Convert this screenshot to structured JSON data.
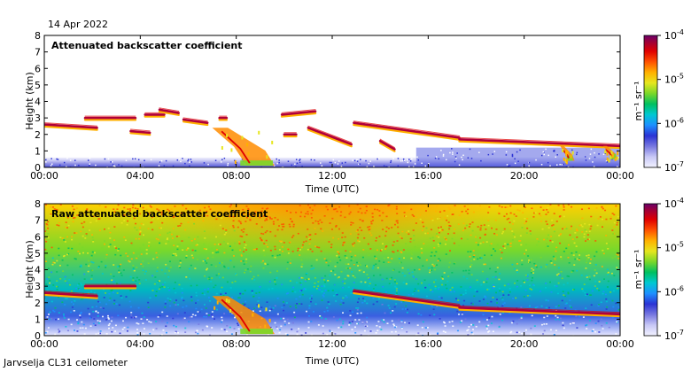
{
  "figure": {
    "date": "14 Apr 2022",
    "footer": "Jarvselja CL31 ceilometer"
  },
  "colorbar": {
    "min_label_base": "10",
    "min_label_exp": "-7",
    "labels": [
      {
        "base": "10",
        "exp": "-4"
      },
      {
        "base": "10",
        "exp": "-5"
      },
      {
        "base": "10",
        "exp": "-6"
      },
      {
        "base": "10",
        "exp": "-7"
      }
    ],
    "unit_text": "m⁻¹ sr⁻¹",
    "colors": [
      "#f2f2ff",
      "#c8c8f6",
      "#7878e0",
      "#2b33d4",
      "#1e90ff",
      "#00c8d2",
      "#00c060",
      "#7ad82a",
      "#e6e61e",
      "#ffb000",
      "#ff5000",
      "#e00000",
      "#a00038",
      "#6a006a"
    ]
  },
  "chart_data": [
    {
      "type": "heatmap",
      "title": "Attenuated backscatter coefficient",
      "xlabel": "Time (UTC)",
      "ylabel": "Height (km)",
      "xlim": [
        0,
        24
      ],
      "ylim": [
        0,
        8
      ],
      "xticks": [
        "00:00",
        "04:00",
        "08:00",
        "12:00",
        "16:00",
        "20:00",
        "00:00"
      ],
      "yticks": [
        "0",
        "1",
        "2",
        "3",
        "4",
        "5",
        "6",
        "7",
        "8"
      ],
      "color_scale": "log10, 1e-7 to 1e-4 m-1 sr-1",
      "features": [
        {
          "kind": "cloud_base",
          "t_start": 0.0,
          "t_end": 2.2,
          "h_start": 2.6,
          "h_end": 2.4
        },
        {
          "kind": "cloud_base",
          "t_start": 1.7,
          "t_end": 3.8,
          "h_start": 3.0,
          "h_end": 3.0
        },
        {
          "kind": "cloud_base",
          "t_start": 3.6,
          "t_end": 4.4,
          "h_start": 2.2,
          "h_end": 2.1
        },
        {
          "kind": "cloud_base",
          "t_start": 4.2,
          "t_end": 5.0,
          "h_start": 3.2,
          "h_end": 3.2
        },
        {
          "kind": "cloud_base",
          "t_start": 4.8,
          "t_end": 5.6,
          "h_start": 3.5,
          "h_end": 3.3
        },
        {
          "kind": "cloud_base",
          "t_start": 5.8,
          "t_end": 6.8,
          "h_start": 2.9,
          "h_end": 2.7
        },
        {
          "kind": "cloud_base",
          "t_start": 7.3,
          "t_end": 7.6,
          "h_start": 3.0,
          "h_end": 3.0
        },
        {
          "kind": "precip",
          "t_start": 7.0,
          "t_end": 9.6,
          "h_start": 2.4,
          "h_end": 0.1
        },
        {
          "kind": "cloud_base",
          "t_start": 10.0,
          "t_end": 10.5,
          "h_start": 2.0,
          "h_end": 2.0
        },
        {
          "kind": "cloud_base",
          "t_start": 9.9,
          "t_end": 11.3,
          "h_start": 3.2,
          "h_end": 3.4
        },
        {
          "kind": "cloud_base",
          "t_start": 11.0,
          "t_end": 12.8,
          "h_start": 2.4,
          "h_end": 1.4
        },
        {
          "kind": "cloud_base",
          "t_start": 12.9,
          "t_end": 17.3,
          "h_start": 2.7,
          "h_end": 1.8
        },
        {
          "kind": "cloud_base",
          "t_start": 17.3,
          "t_end": 24.0,
          "h_start": 1.7,
          "h_end": 1.3
        },
        {
          "kind": "cloud_base",
          "t_start": 14.0,
          "t_end": 14.6,
          "h_start": 1.6,
          "h_end": 1.1
        },
        {
          "kind": "precip",
          "t_start": 21.5,
          "t_end": 22.1,
          "h_start": 1.3,
          "h_end": 0.4
        },
        {
          "kind": "precip",
          "t_start": 23.3,
          "t_end": 23.9,
          "h_start": 1.3,
          "h_end": 0.5
        }
      ],
      "boundary_layer_km": 0.6
    },
    {
      "type": "heatmap",
      "title": "Raw attenuated backscatter coefficient",
      "xlabel": "Time (UTC)",
      "ylabel": "Height (km)",
      "xlim": [
        0,
        24
      ],
      "ylim": [
        0,
        8
      ],
      "xticks": [
        "00:00",
        "04:00",
        "08:00",
        "12:00",
        "16:00",
        "20:00",
        "00:00"
      ],
      "yticks": [
        "0",
        "1",
        "2",
        "3",
        "4",
        "5",
        "6",
        "7",
        "8"
      ],
      "color_scale": "log10, 1e-7 to 1e-4 m-1 sr-1",
      "noise": "high noise above 3 km, strongest 08:00-15:00 near 8 km",
      "features": [
        {
          "kind": "cloud_base",
          "t_start": 0.0,
          "t_end": 2.2,
          "h_start": 2.6,
          "h_end": 2.4
        },
        {
          "kind": "cloud_base",
          "t_start": 1.7,
          "t_end": 3.8,
          "h_start": 3.0,
          "h_end": 3.0
        },
        {
          "kind": "precip",
          "t_start": 7.0,
          "t_end": 9.6,
          "h_start": 2.4,
          "h_end": 0.1
        },
        {
          "kind": "cloud_base",
          "t_start": 12.9,
          "t_end": 17.3,
          "h_start": 2.7,
          "h_end": 1.8
        },
        {
          "kind": "cloud_base",
          "t_start": 17.3,
          "t_end": 24.0,
          "h_start": 1.7,
          "h_end": 1.3
        }
      ]
    }
  ]
}
